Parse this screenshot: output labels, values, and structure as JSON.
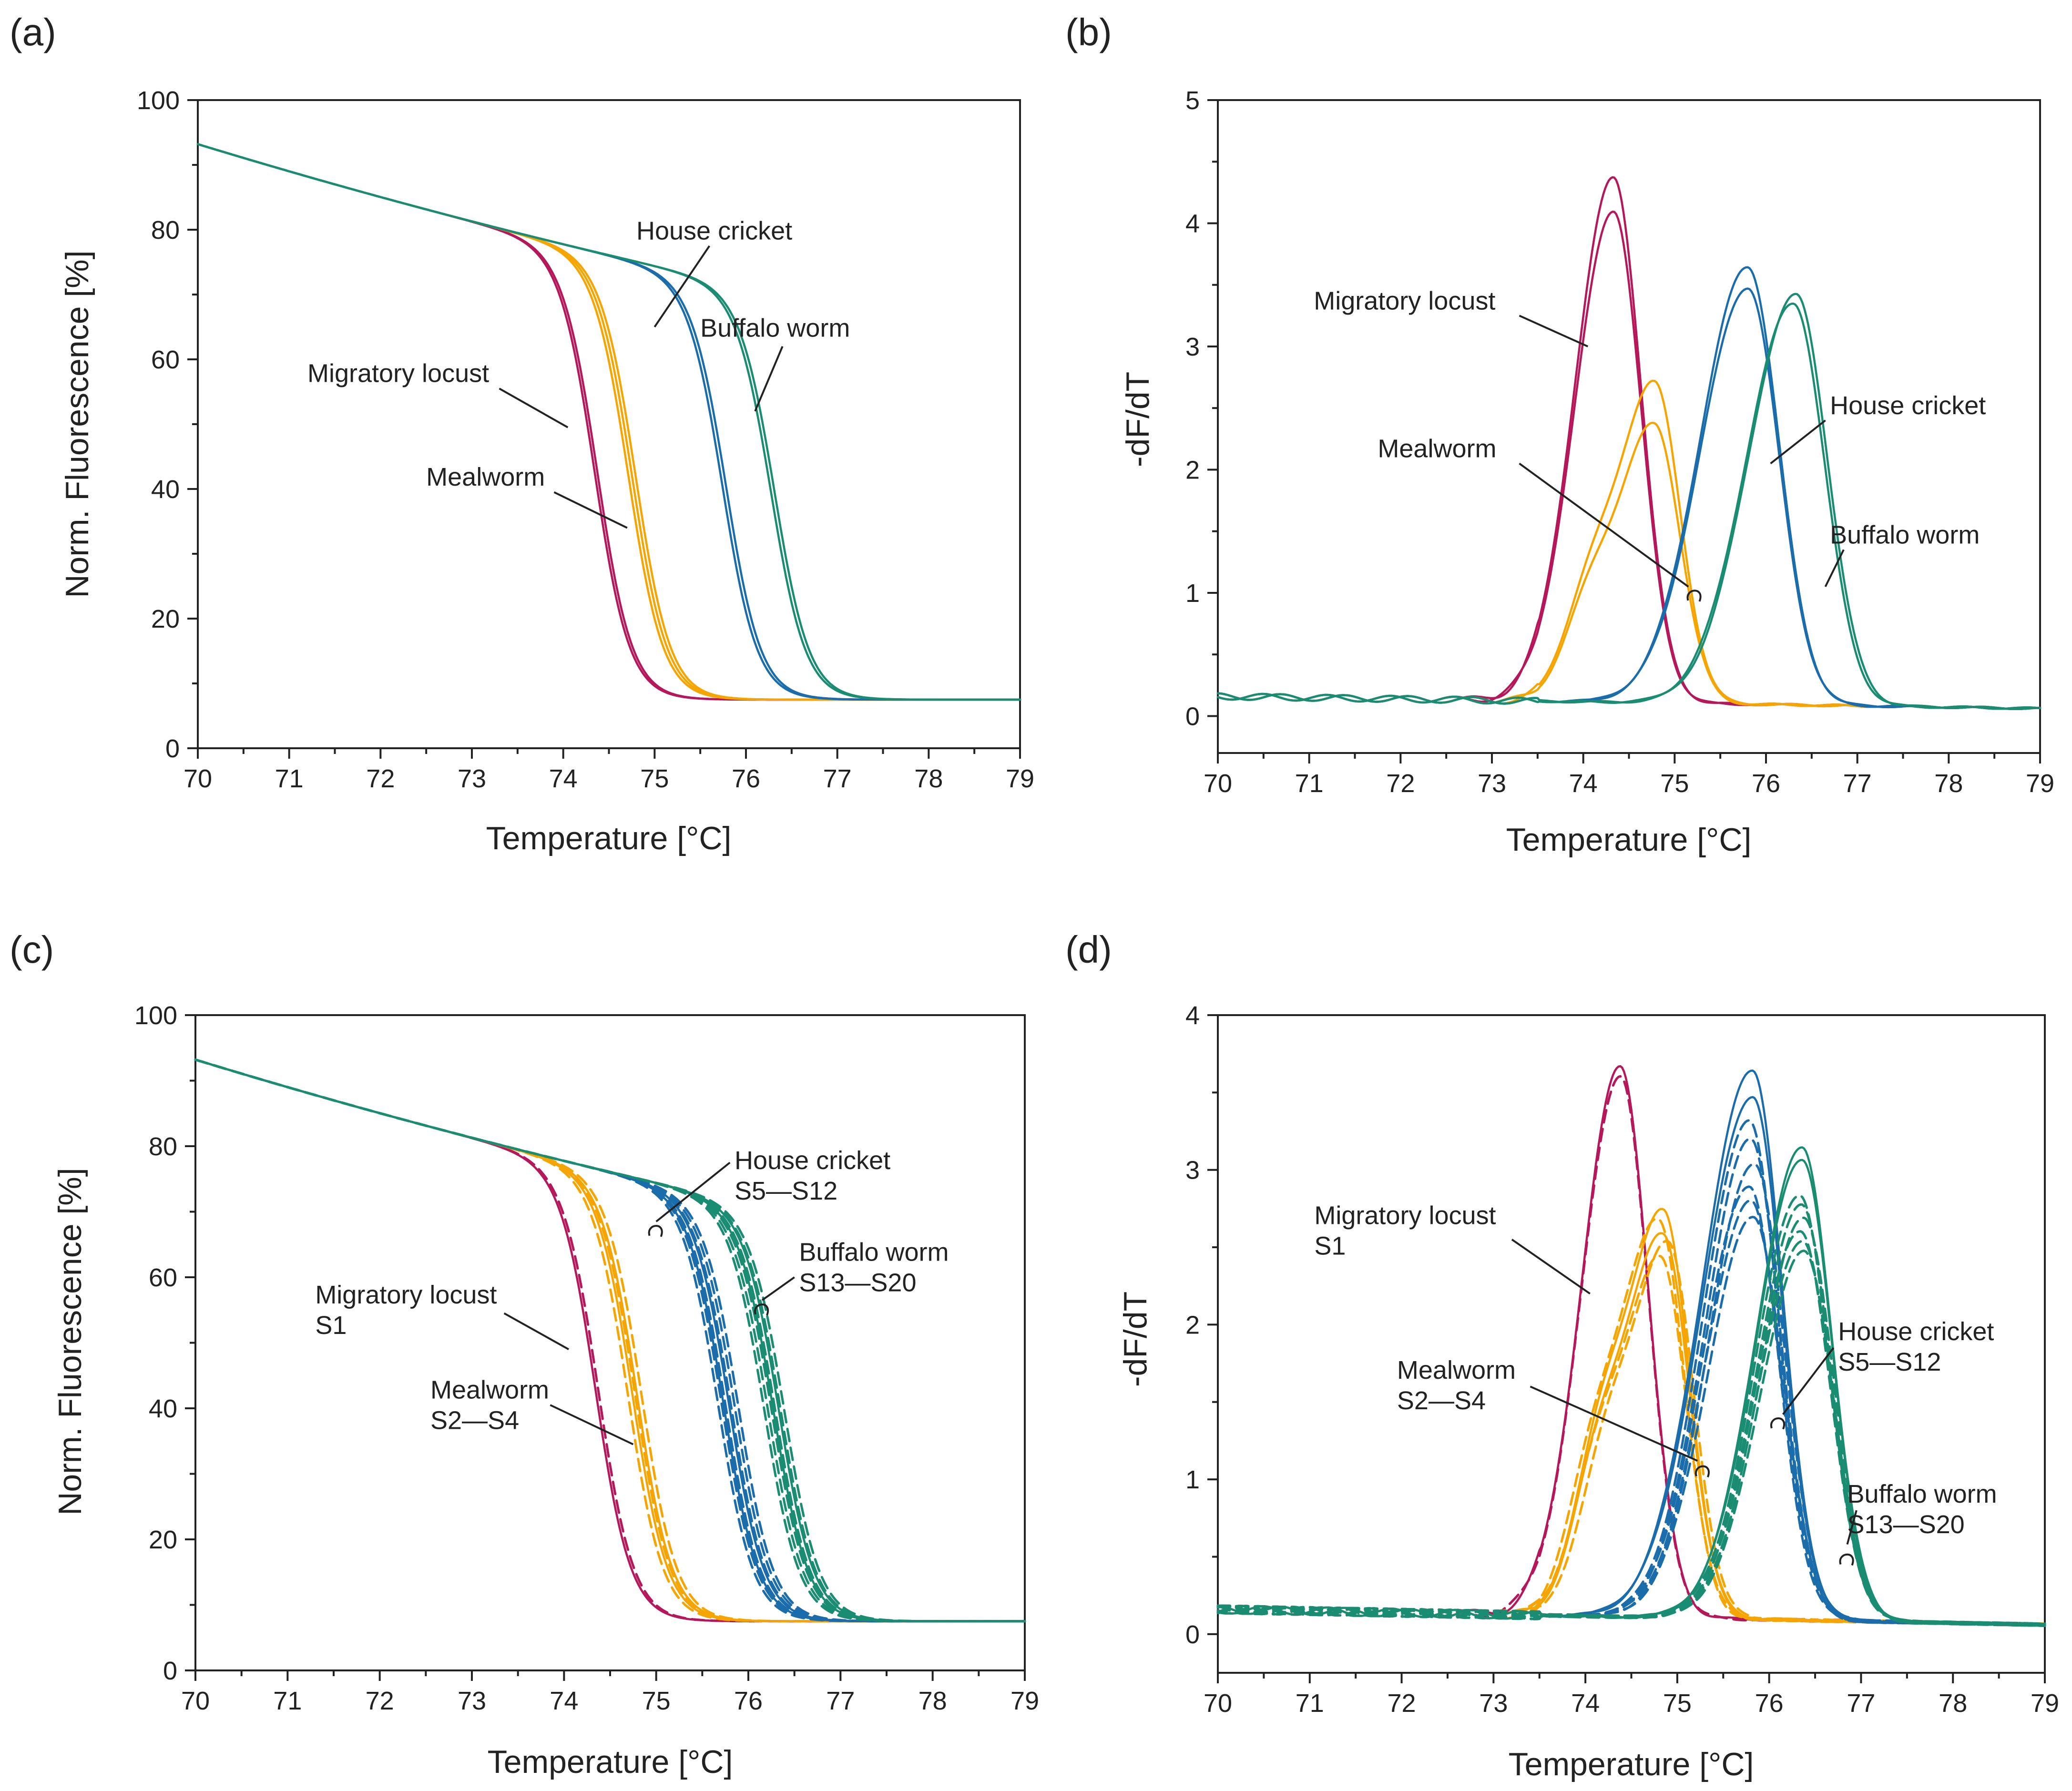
{
  "colors": {
    "migratory_locust": "#b5185a",
    "mealworm": "#f5a400",
    "house_cricket": "#1b6cab",
    "buffalo_worm": "#1a8c72",
    "axis": "#222222"
  },
  "chart_data": [
    {
      "panel": "(a)",
      "type": "line",
      "xlabel": "Temperature [°C]",
      "ylabel": "Norm. Fluorescence [%]",
      "xlim": [
        70,
        79
      ],
      "ylim": [
        0,
        100
      ],
      "xticks": [
        70,
        71,
        72,
        73,
        74,
        75,
        76,
        77,
        78,
        79
      ],
      "yticks": [
        0,
        20,
        40,
        60,
        80,
        100
      ],
      "curve_kind": "melt",
      "series": [
        {
          "key": "migratory_locust",
          "replicates": [
            {
              "tm": 74.35,
              "dash": false
            },
            {
              "tm": 74.38,
              "dash": false
            }
          ]
        },
        {
          "key": "mealworm",
          "replicates": [
            {
              "tm": 74.72,
              "dash": false
            },
            {
              "tm": 74.76,
              "dash": false
            },
            {
              "tm": 74.8,
              "dash": false
            }
          ]
        },
        {
          "key": "house_cricket",
          "replicates": [
            {
              "tm": 75.75,
              "dash": false
            },
            {
              "tm": 75.79,
              "dash": false
            }
          ]
        },
        {
          "key": "buffalo_worm",
          "replicates": [
            {
              "tm": 76.28,
              "dash": false
            },
            {
              "tm": 76.32,
              "dash": false
            }
          ]
        }
      ],
      "annotations": [
        {
          "lines": [
            "House cricket"
          ],
          "text_x": 74.8,
          "text_y": 78.5,
          "anchor": "start",
          "leader": [
            [
              75.6,
              77.5
            ],
            [
              75.0,
              65
            ]
          ]
        },
        {
          "lines": [
            "Buffalo worm"
          ],
          "text_x": 75.5,
          "text_y": 63.5,
          "anchor": "start",
          "leader": [
            [
              76.4,
              62
            ],
            [
              76.1,
              52
            ]
          ]
        },
        {
          "lines": [
            "Migratory locust"
          ],
          "text_x": 71.2,
          "text_y": 56.5,
          "anchor": "start",
          "leader": [
            [
              73.3,
              55.5
            ],
            [
              74.05,
              49.5
            ]
          ]
        },
        {
          "lines": [
            "Mealworm"
          ],
          "text_x": 72.5,
          "text_y": 40.5,
          "anchor": "start",
          "leader": [
            [
              73.9,
              39.5
            ],
            [
              74.7,
              34
            ]
          ]
        }
      ]
    },
    {
      "panel": "(b)",
      "type": "line",
      "xlabel": "Temperature [°C]",
      "ylabel": "-dF/dT",
      "xlim": [
        70,
        79
      ],
      "ylim": [
        -0.3,
        5
      ],
      "xticks": [
        70,
        71,
        72,
        73,
        74,
        75,
        76,
        77,
        78,
        79
      ],
      "yticks": [
        0,
        1,
        2,
        3,
        4,
        5
      ],
      "curve_kind": "peak",
      "series": [
        {
          "key": "migratory_locust",
          "replicates": [
            {
              "tm": 74.33,
              "peak": 4.26,
              "left": 0.42,
              "right": 0.3,
              "dash": false
            },
            {
              "tm": 74.33,
              "peak": 3.99,
              "left": 0.42,
              "right": 0.3,
              "dash": false
            }
          ]
        },
        {
          "key": "mealworm",
          "replicates": [
            {
              "tm": 74.78,
              "peak": 2.58,
              "left": 0.38,
              "right": 0.28,
              "shoulder": 1.4,
              "dash": false
            },
            {
              "tm": 74.78,
              "peak": 2.24,
              "left": 0.38,
              "right": 0.28,
              "shoulder": 1.25,
              "dash": false
            }
          ]
        },
        {
          "key": "house_cricket",
          "replicates": [
            {
              "tm": 75.8,
              "peak": 3.55,
              "left": 0.52,
              "right": 0.34,
              "dash": false
            },
            {
              "tm": 75.8,
              "peak": 3.38,
              "left": 0.52,
              "right": 0.34,
              "dash": false
            }
          ]
        },
        {
          "key": "buffalo_worm",
          "replicates": [
            {
              "tm": 76.33,
              "peak": 3.33,
              "left": 0.52,
              "right": 0.34,
              "dash": false
            },
            {
              "tm": 76.3,
              "peak": 3.26,
              "left": 0.52,
              "right": 0.34,
              "dash": false
            }
          ]
        }
      ],
      "annotations": [
        {
          "lines": [
            "Migratory locust"
          ],
          "text_x": 71.05,
          "text_y": 3.3,
          "anchor": "start",
          "leader": [
            [
              73.3,
              3.25
            ],
            [
              74.05,
              3.0
            ]
          ]
        },
        {
          "lines": [
            "Mealworm"
          ],
          "text_x": 71.75,
          "text_y": 2.1,
          "anchor": "start",
          "leader": [
            [
              73.3,
              2.05
            ],
            [
              75.15,
              1.05
            ]
          ],
          "brace": [
            75.22,
            1.0
          ]
        },
        {
          "lines": [
            "House cricket"
          ],
          "text_x": 76.7,
          "text_y": 2.45,
          "anchor": "start",
          "leader": [
            [
              76.65,
              2.4
            ],
            [
              76.05,
              2.05
            ]
          ]
        },
        {
          "lines": [
            "Buffalo worm"
          ],
          "text_x": 76.7,
          "text_y": 1.4,
          "anchor": "start",
          "leader": [
            [
              76.85,
              1.35
            ],
            [
              76.65,
              1.05
            ]
          ]
        }
      ]
    },
    {
      "panel": "(c)",
      "type": "line",
      "xlabel": "Temperature [°C]",
      "ylabel": "Norm. Fluorescence [%]",
      "xlim": [
        70,
        79
      ],
      "ylim": [
        0,
        100
      ],
      "xticks": [
        70,
        71,
        72,
        73,
        74,
        75,
        76,
        77,
        78,
        79
      ],
      "yticks": [
        0,
        20,
        40,
        60,
        80,
        100
      ],
      "curve_kind": "melt",
      "series": [
        {
          "key": "migratory_locust",
          "replicates": [
            {
              "tm": 74.35,
              "dash": false
            },
            {
              "tm": 74.38,
              "dash": true
            }
          ]
        },
        {
          "key": "mealworm",
          "replicates": [
            {
              "tm": 74.75,
              "dash": false
            },
            {
              "tm": 74.8,
              "dash": false
            },
            {
              "tm": 74.7,
              "dash": true
            },
            {
              "tm": 74.85,
              "dash": true
            },
            {
              "tm": 74.78,
              "dash": true
            }
          ]
        },
        {
          "key": "house_cricket",
          "replicates": [
            {
              "tm": 75.74,
              "dash": false
            },
            {
              "tm": 75.8,
              "dash": false
            },
            {
              "tm": 75.68,
              "dash": true
            },
            {
              "tm": 75.72,
              "dash": true
            },
            {
              "tm": 75.76,
              "dash": true
            },
            {
              "tm": 75.82,
              "dash": true
            },
            {
              "tm": 75.86,
              "dash": true
            },
            {
              "tm": 75.9,
              "dash": true
            }
          ]
        },
        {
          "key": "buffalo_worm",
          "replicates": [
            {
              "tm": 76.28,
              "dash": false
            },
            {
              "tm": 76.34,
              "dash": false
            },
            {
              "tm": 76.18,
              "dash": true
            },
            {
              "tm": 76.22,
              "dash": true
            },
            {
              "tm": 76.26,
              "dash": true
            },
            {
              "tm": 76.3,
              "dash": true
            },
            {
              "tm": 76.36,
              "dash": true
            },
            {
              "tm": 76.4,
              "dash": true
            }
          ]
        }
      ],
      "annotations": [
        {
          "lines": [
            "House cricket",
            "S5—S12"
          ],
          "text_x": 75.85,
          "text_y": 76.5,
          "anchor": "start",
          "leader": [
            [
              75.8,
              77.5
            ],
            [
              75.0,
              68.5
            ]
          ],
          "brace": [
            75.0,
            67.5
          ]
        },
        {
          "lines": [
            "Buffalo worm",
            "S13—S20"
          ],
          "text_x": 76.55,
          "text_y": 62.5,
          "anchor": "start",
          "leader": [
            [
              76.5,
              60
            ],
            [
              76.15,
              56.5
            ]
          ],
          "brace": [
            76.15,
            55.5
          ]
        },
        {
          "lines": [
            "Migratory locust",
            "S1"
          ],
          "text_x": 71.3,
          "text_y": 56,
          "anchor": "start",
          "leader": [
            [
              73.35,
              54.5
            ],
            [
              74.05,
              49
            ]
          ]
        },
        {
          "lines": [
            "Mealworm",
            "S2—S4"
          ],
          "text_x": 72.55,
          "text_y": 41.5,
          "anchor": "start",
          "leader": [
            [
              73.85,
              40.5
            ],
            [
              74.75,
              34.5
            ]
          ]
        }
      ]
    },
    {
      "panel": "(d)",
      "type": "line",
      "xlabel": "Temperature [°C]",
      "ylabel": "-dF/dT",
      "xlim": [
        70,
        79
      ],
      "ylim": [
        -0.25,
        4
      ],
      "xticks": [
        70,
        71,
        72,
        73,
        74,
        75,
        76,
        77,
        78,
        79
      ],
      "yticks": [
        0,
        1,
        2,
        3,
        4
      ],
      "curve_kind": "peak",
      "series": [
        {
          "key": "migratory_locust",
          "replicates": [
            {
              "tm": 74.38,
              "peak": 3.56,
              "left": 0.42,
              "right": 0.3,
              "dash": false
            },
            {
              "tm": 74.38,
              "peak": 3.5,
              "left": 0.42,
              "right": 0.3,
              "dash": true
            }
          ]
        },
        {
          "key": "mealworm",
          "replicates": [
            {
              "tm": 74.85,
              "peak": 2.6,
              "left": 0.4,
              "right": 0.28,
              "shoulder": 1.55,
              "dash": false
            },
            {
              "tm": 74.85,
              "peak": 2.45,
              "left": 0.4,
              "right": 0.28,
              "shoulder": 1.45,
              "dash": false
            },
            {
              "tm": 74.8,
              "peak": 2.55,
              "left": 0.4,
              "right": 0.28,
              "shoulder": 1.5,
              "dash": true
            },
            {
              "tm": 74.9,
              "peak": 2.4,
              "left": 0.4,
              "right": 0.28,
              "shoulder": 1.4,
              "dash": true
            },
            {
              "tm": 74.82,
              "peak": 2.3,
              "left": 0.4,
              "right": 0.28,
              "shoulder": 1.35,
              "dash": true
            }
          ]
        },
        {
          "key": "house_cricket",
          "replicates": [
            {
              "tm": 75.82,
              "peak": 3.55,
              "left": 0.55,
              "right": 0.32,
              "dash": false
            },
            {
              "tm": 75.82,
              "peak": 3.38,
              "left": 0.55,
              "right": 0.32,
              "dash": false
            },
            {
              "tm": 75.78,
              "peak": 3.22,
              "left": 0.5,
              "right": 0.32,
              "dash": true
            },
            {
              "tm": 75.8,
              "peak": 3.1,
              "left": 0.5,
              "right": 0.32,
              "dash": true
            },
            {
              "tm": 75.84,
              "peak": 2.95,
              "left": 0.5,
              "right": 0.32,
              "dash": true
            },
            {
              "tm": 75.78,
              "peak": 2.8,
              "left": 0.5,
              "right": 0.32,
              "dash": true
            },
            {
              "tm": 75.8,
              "peak": 2.7,
              "left": 0.5,
              "right": 0.32,
              "dash": true
            },
            {
              "tm": 75.83,
              "peak": 2.6,
              "left": 0.5,
              "right": 0.32,
              "dash": true
            }
          ]
        },
        {
          "key": "buffalo_worm",
          "replicates": [
            {
              "tm": 76.36,
              "peak": 3.05,
              "left": 0.5,
              "right": 0.32,
              "dash": false
            },
            {
              "tm": 76.36,
              "peak": 2.98,
              "left": 0.5,
              "right": 0.32,
              "dash": false
            },
            {
              "tm": 76.33,
              "peak": 2.75,
              "left": 0.48,
              "right": 0.32,
              "dash": true
            },
            {
              "tm": 76.35,
              "peak": 2.68,
              "left": 0.48,
              "right": 0.32,
              "dash": true
            },
            {
              "tm": 76.38,
              "peak": 2.6,
              "left": 0.48,
              "right": 0.32,
              "dash": true
            },
            {
              "tm": 76.34,
              "peak": 2.52,
              "left": 0.48,
              "right": 0.32,
              "dash": true
            },
            {
              "tm": 76.36,
              "peak": 2.45,
              "left": 0.48,
              "right": 0.32,
              "dash": true
            },
            {
              "tm": 76.38,
              "peak": 2.38,
              "left": 0.48,
              "right": 0.32,
              "dash": true
            }
          ]
        }
      ],
      "annotations": [
        {
          "lines": [
            "Migratory locust",
            "S1"
          ],
          "text_x": 71.05,
          "text_y": 2.65,
          "anchor": "start",
          "leader": [
            [
              73.2,
              2.55
            ],
            [
              74.05,
              2.2
            ]
          ]
        },
        {
          "lines": [
            "Mealworm",
            "S2—S4"
          ],
          "text_x": 71.95,
          "text_y": 1.65,
          "anchor": "start",
          "leader": [
            [
              73.4,
              1.6
            ],
            [
              75.22,
              1.12
            ]
          ],
          "brace": [
            75.28,
            1.07
          ]
        },
        {
          "lines": [
            "House cricket",
            "S5—S12"
          ],
          "text_x": 76.75,
          "text_y": 1.9,
          "anchor": "start",
          "leader": [
            [
              76.7,
              1.85
            ],
            [
              76.15,
              1.42
            ]
          ],
          "brace": [
            76.1,
            1.38
          ]
        },
        {
          "lines": [
            "Buffalo worm",
            "S13—S20"
          ],
          "text_x": 76.85,
          "text_y": 0.85,
          "anchor": "start",
          "leader": [
            [
              76.95,
              0.8
            ],
            [
              76.85,
              0.58
            ]
          ],
          "brace": [
            76.85,
            0.5
          ]
        }
      ]
    }
  ]
}
